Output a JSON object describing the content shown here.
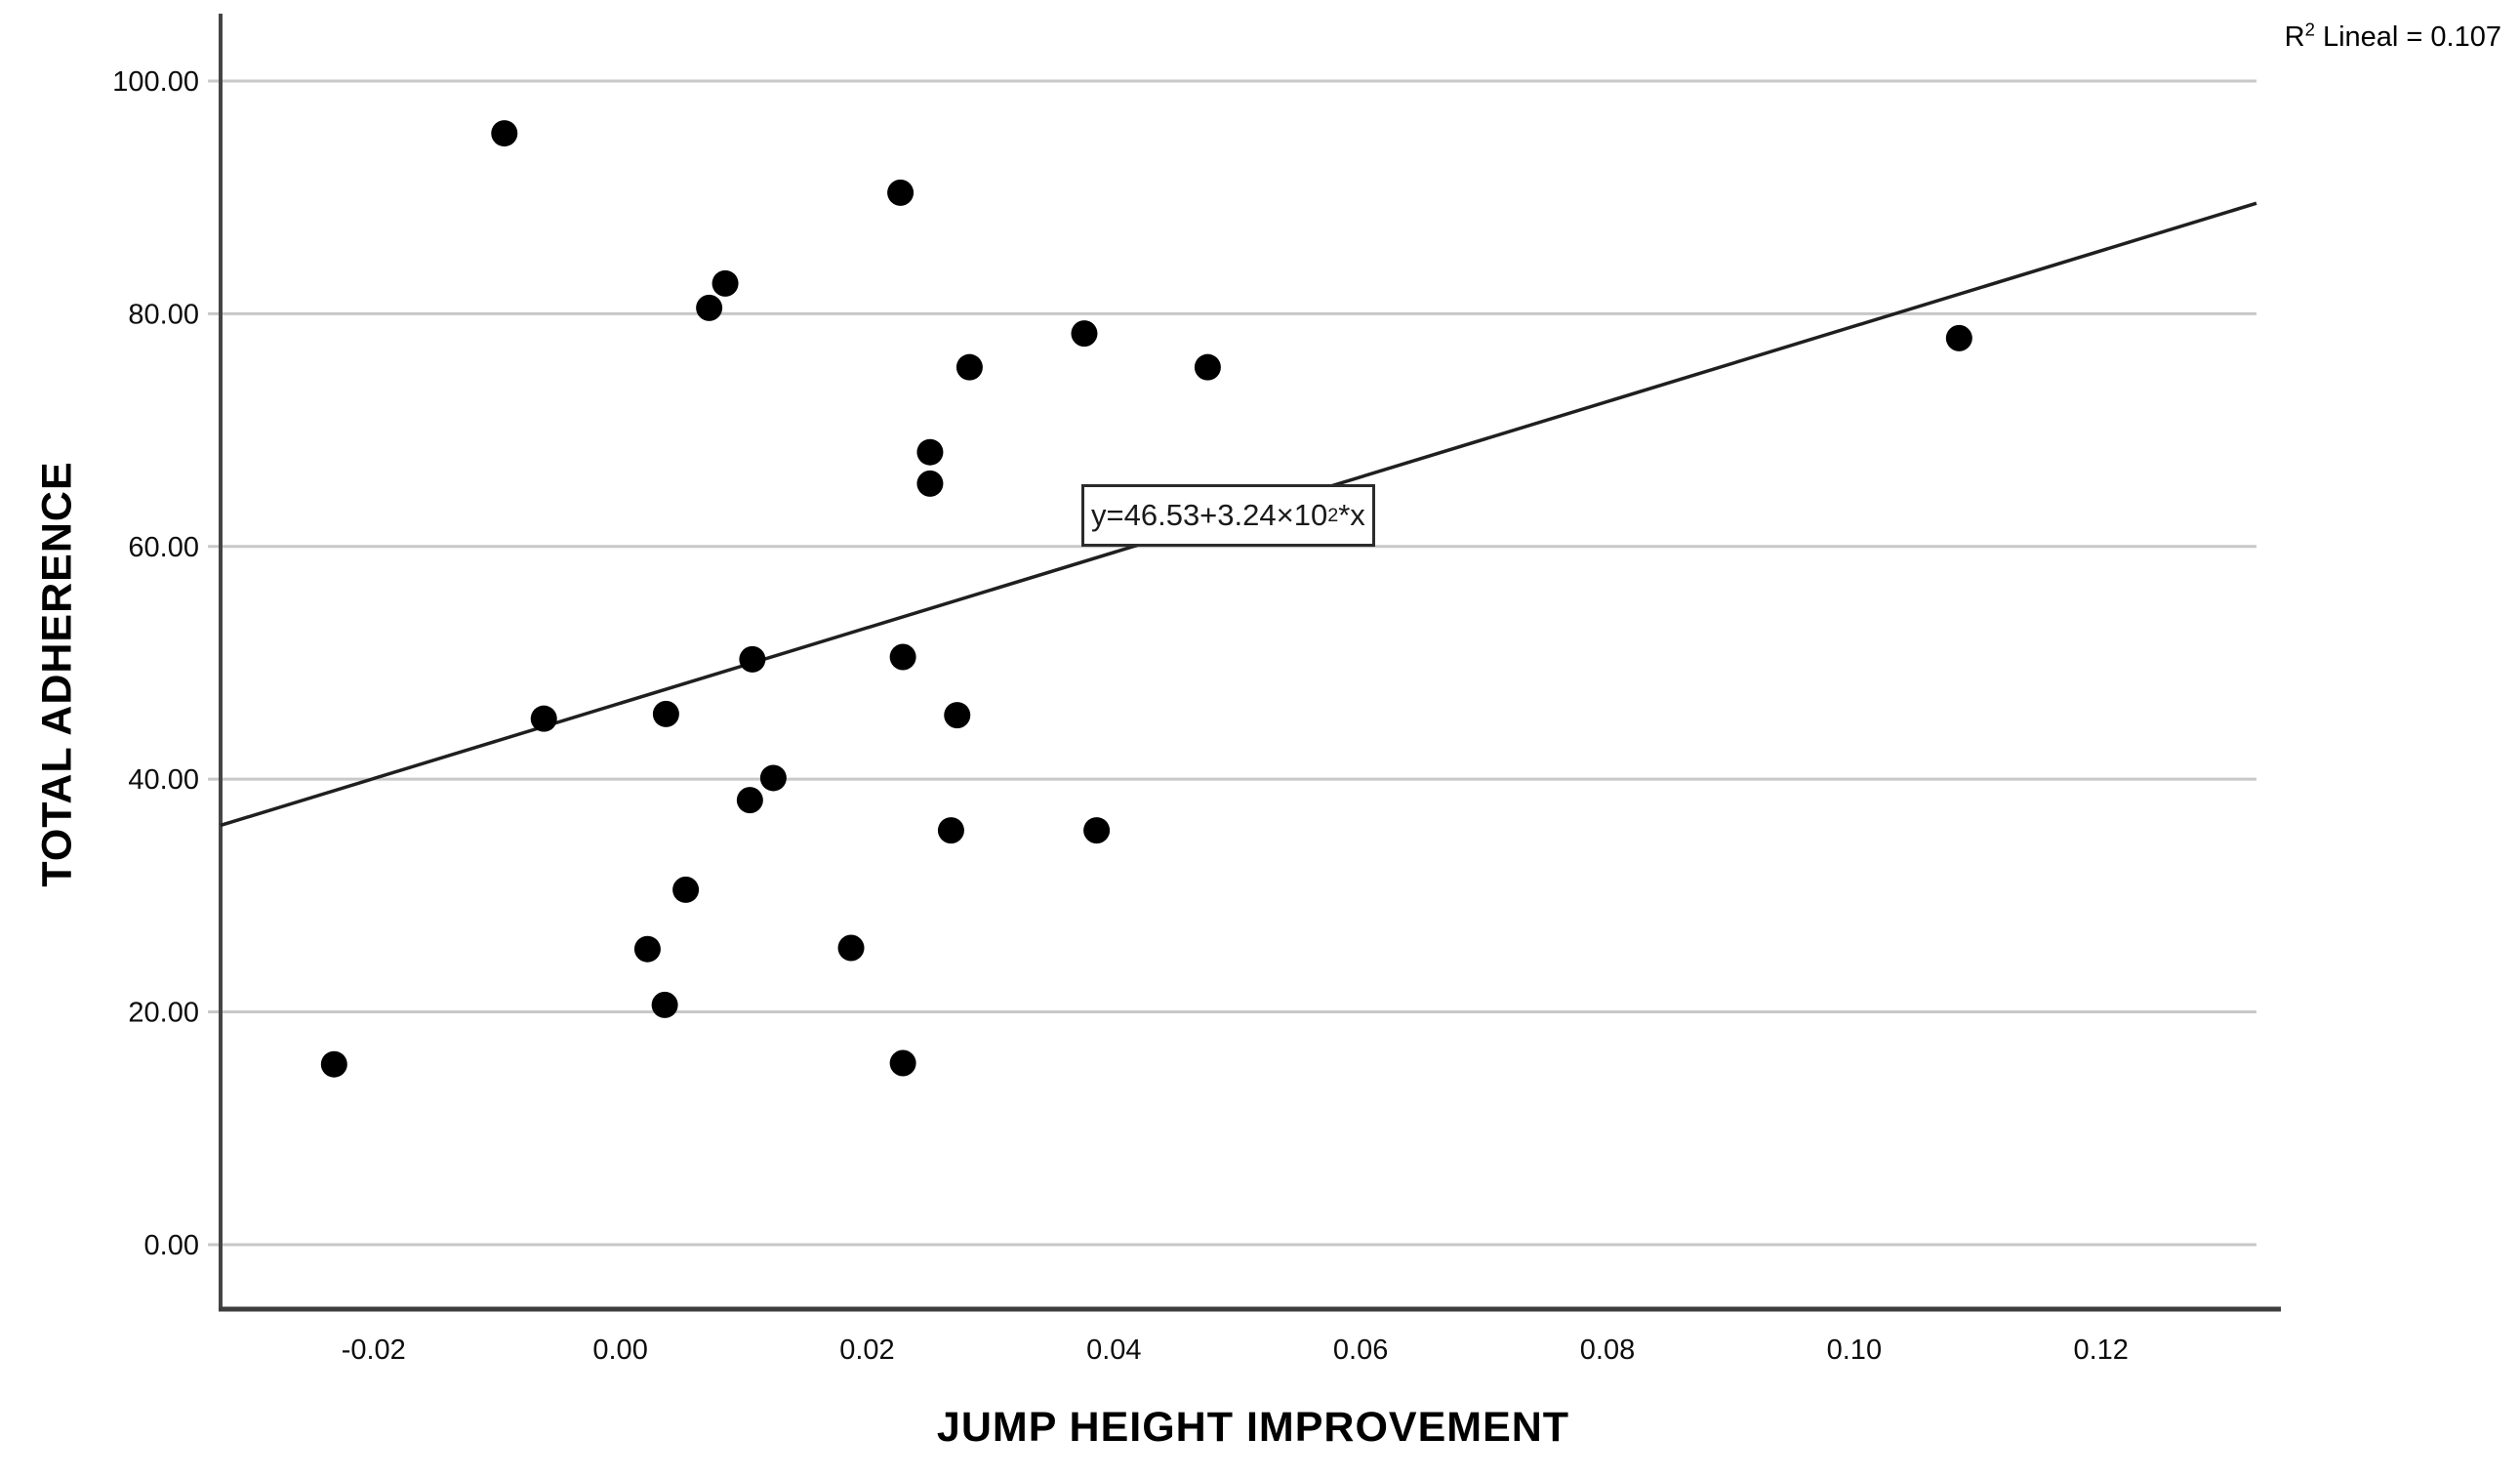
{
  "chart_data": {
    "type": "scatter",
    "title": "",
    "xlabel": "JUMP HEIGHT IMPROVEMENT",
    "ylabel": "TOTAL ADHERENCE",
    "x_tick_values": [
      -0.02,
      0.0,
      0.02,
      0.04,
      0.06,
      0.08,
      0.1,
      0.12
    ],
    "x_tick_labels": [
      "-0.02",
      "0.00",
      "0.02",
      "0.04",
      "0.06",
      "0.08",
      "0.10",
      "0.12"
    ],
    "y_tick_values": [
      0,
      20,
      40,
      60,
      80,
      100
    ],
    "y_tick_labels": [
      "0.00",
      "20.00",
      "40.00",
      "60.00",
      "80.00",
      "100.00"
    ],
    "xlim": [
      -0.0324,
      0.1326
    ],
    "ylim": [
      -5.54,
      105.7
    ],
    "grid": "horizontal-only",
    "legend": "none",
    "points": [
      [
        -0.0094,
        95.5
      ],
      [
        0.0227,
        90.4
      ],
      [
        0.0085,
        82.6
      ],
      [
        0.0072,
        80.5
      ],
      [
        0.0376,
        78.3
      ],
      [
        0.1085,
        77.9
      ],
      [
        0.0283,
        75.4
      ],
      [
        0.0476,
        75.4
      ],
      [
        0.0251,
        68.1
      ],
      [
        0.0251,
        65.4
      ],
      [
        0.0229,
        50.5
      ],
      [
        0.0107,
        50.3
      ],
      [
        -0.0062,
        45.2
      ],
      [
        0.0037,
        45.6
      ],
      [
        0.0273,
        45.5
      ],
      [
        0.0124,
        40.1
      ],
      [
        0.0105,
        38.2
      ],
      [
        0.0268,
        35.6
      ],
      [
        0.0386,
        35.6
      ],
      [
        0.0053,
        30.5
      ],
      [
        0.0022,
        25.4
      ],
      [
        0.0187,
        25.5
      ],
      [
        0.0036,
        20.6
      ],
      [
        -0.0232,
        15.5
      ],
      [
        0.0229,
        15.6
      ]
    ],
    "regression": {
      "intercept": 46.53,
      "slope": 324,
      "equation": {
        "prefix": "y=46.53+3.24×10",
        "superscript": "2",
        "suffix": "*x"
      }
    },
    "r_squared": {
      "value": 0.107,
      "prefix": "R",
      "superscript": "2",
      "suffix": " Lineal = 0.107"
    },
    "colors": {
      "point": "#000000",
      "regression_line": "#1f1f1f",
      "grid": "#c8c8c8",
      "axis": "#454545",
      "tick_text": "#0d0d0d"
    }
  }
}
